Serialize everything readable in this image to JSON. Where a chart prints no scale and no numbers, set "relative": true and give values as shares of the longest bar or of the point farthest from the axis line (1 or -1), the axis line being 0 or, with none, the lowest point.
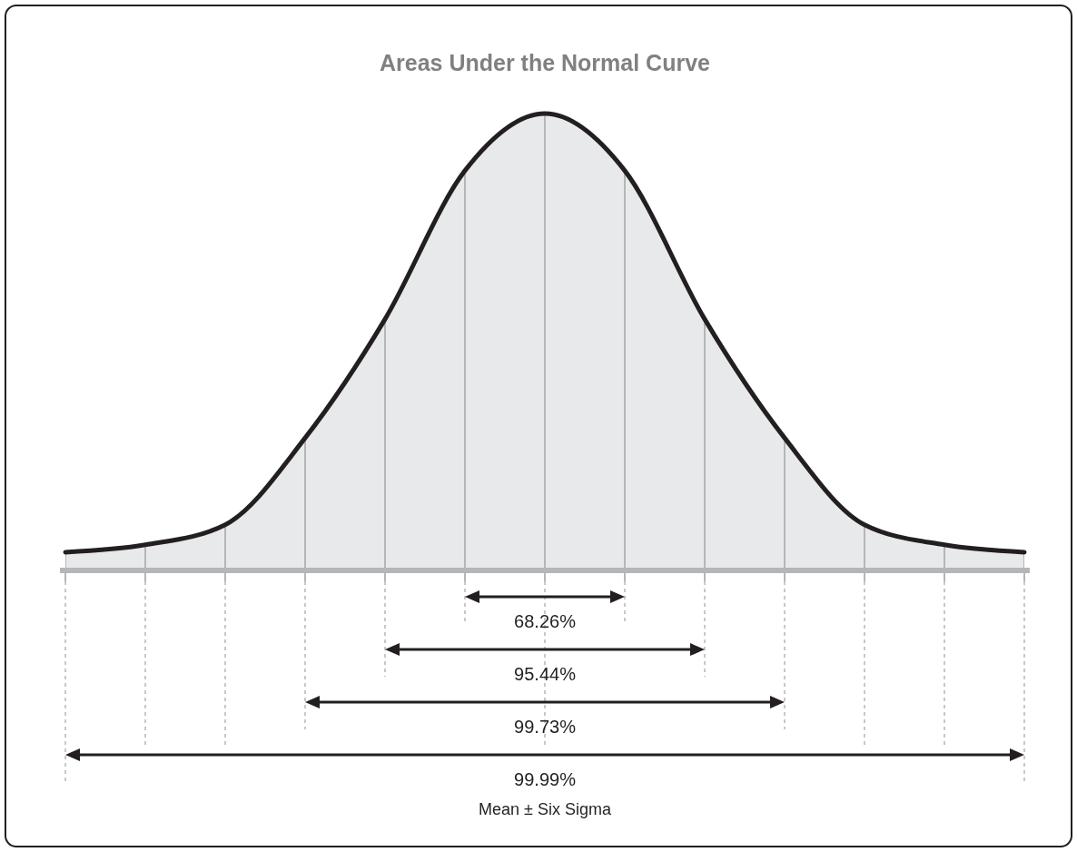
{
  "chart_data": {
    "type": "area",
    "title": "Areas Under the Normal Curve",
    "relative": true,
    "categories": [
      null,
      null,
      null,
      null,
      null,
      null,
      null,
      null,
      null,
      null,
      null,
      null,
      null
    ],
    "series": [
      {
        "color": "#e8e9ea",
        "values": [
          0.04,
          0.056,
          0.1,
          0.29,
          0.55,
          0.875,
          1,
          0.875,
          0.55,
          0.29,
          0.1,
          0.056,
          0.04
        ]
      }
    ],
    "grid": "x",
    "annotations": [
      "68.26%",
      "95.44%",
      "99.73%",
      "99.99%",
      "Mean ± Six Sigma"
    ]
  }
}
